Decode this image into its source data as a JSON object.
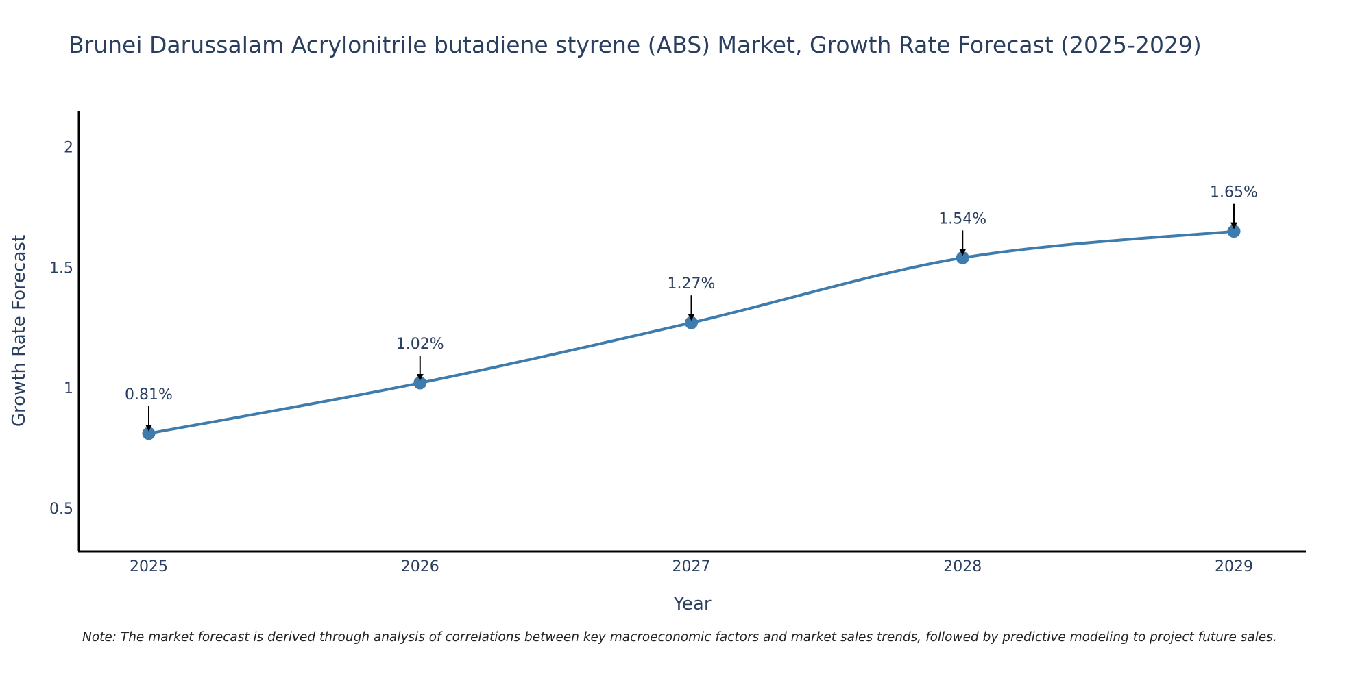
{
  "chart_data": {
    "type": "line",
    "title": "Brunei Darussalam Acrylonitrile butadiene styrene (ABS) Market, Growth Rate Forecast (2025-2029)",
    "xlabel": "Year",
    "ylabel": "Growth Rate Forecast",
    "categories": [
      "2025",
      "2026",
      "2027",
      "2028",
      "2029"
    ],
    "series": [
      {
        "name": "Growth Rate Forecast",
        "values": [
          0.81,
          1.02,
          1.27,
          1.54,
          1.65
        ],
        "labels": [
          "0.81%",
          "1.02%",
          "1.27%",
          "1.54%",
          "1.65%"
        ],
        "color": "#3d7cad"
      }
    ],
    "ylim": [
      0.32,
      2.15
    ],
    "yticks": [
      0.5,
      1,
      1.5,
      2
    ],
    "ytick_labels": [
      "0.5",
      "1",
      "1.5",
      "2"
    ],
    "grid": false,
    "legend": "none"
  },
  "note": "Note: The market forecast is derived through analysis of correlations between key macroeconomic factors and market sales trends, followed by predictive modeling to project future sales."
}
